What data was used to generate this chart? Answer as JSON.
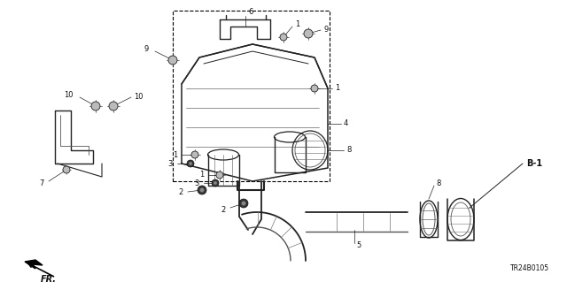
{
  "background_color": "#ffffff",
  "fig_width": 6.4,
  "fig_height": 3.19,
  "dpi": 100,
  "diagram_code": "TR24B0105",
  "label_fontsize": 6.0,
  "bold_label_fontsize": 7.0,
  "line_color": "#222222",
  "label_color": "#111111"
}
